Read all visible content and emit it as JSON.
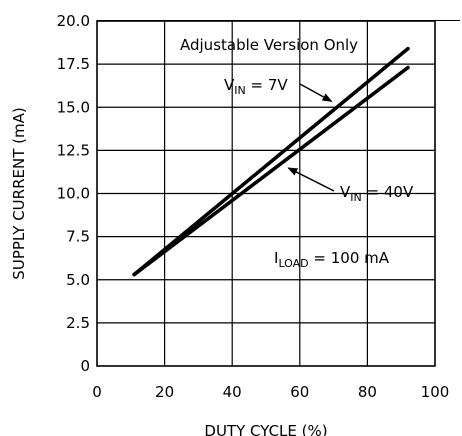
{
  "chart_data": {
    "type": "line",
    "title": "",
    "xlabel": "DUTY CYCLE (%)",
    "ylabel": "SUPPLY CURRENT (mA)",
    "xlim": [
      0,
      100
    ],
    "ylim": [
      0,
      20
    ],
    "x_ticks": [
      "0",
      "20",
      "40",
      "60",
      "80",
      "100"
    ],
    "y_ticks": [
      "0",
      "2.5",
      "5.0",
      "7.5",
      "10.0",
      "12.5",
      "15.0",
      "17.5",
      "20.0"
    ],
    "grid": true,
    "series": [
      {
        "name": "V_IN = 7V",
        "x": [
          11,
          92
        ],
        "y": [
          5.3,
          18.4
        ]
      },
      {
        "name": "V_IN = 40V",
        "x": [
          11,
          92
        ],
        "y": [
          5.3,
          17.3
        ]
      }
    ],
    "annotations": {
      "version_note": "Adjustable Version Only",
      "vin7": {
        "main": "V",
        "sub": "IN",
        "rest": " = 7V"
      },
      "vin40": {
        "main": "V",
        "sub": "IN",
        "rest": " = 40V"
      },
      "iload": {
        "main": "I",
        "sub": "LOAD",
        "rest": " = 100 mA"
      }
    }
  }
}
